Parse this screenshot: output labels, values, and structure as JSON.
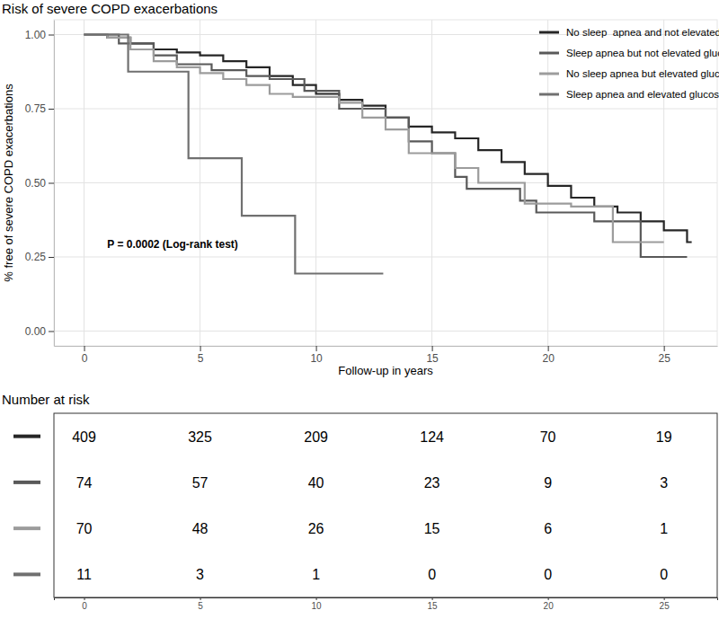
{
  "chart_data": {
    "type": "line",
    "line_style": "step",
    "title": "Risk of severe COPD exacerbations",
    "x_label": "Follow-up in years",
    "y_label": "% free of severe COPD exacerbations",
    "annotation": "P = 0.0002 (Log-rank test)",
    "xlim": [
      -1.3,
      27.3
    ],
    "ylim": [
      -0.05,
      1.05
    ],
    "xticks": [
      0,
      5,
      10,
      15,
      20,
      25
    ],
    "yticks": [
      {
        "value": 0,
        "label": "0.00"
      },
      {
        "value": 0.25,
        "label": "0.25"
      },
      {
        "value": 0.5,
        "label": "0.50"
      },
      {
        "value": 0.75,
        "label": "0.75"
      },
      {
        "value": 1,
        "label": "1.00"
      }
    ],
    "grid": true,
    "legend": "top-right",
    "series": [
      {
        "name": "No sleep  apnea and not elevated glucose",
        "color": "#262626",
        "x": [
          0,
          1,
          2,
          3,
          4,
          5,
          6,
          7,
          8,
          9,
          10,
          11,
          12,
          13,
          14,
          15,
          16,
          17,
          18,
          19,
          20,
          21,
          22,
          23,
          24,
          25,
          26,
          26.2
        ],
        "values": [
          1,
          0.99,
          0.97,
          0.95,
          0.94,
          0.93,
          0.91,
          0.89,
          0.86,
          0.83,
          0.8,
          0.78,
          0.76,
          0.72,
          0.69,
          0.67,
          0.65,
          0.61,
          0.57,
          0.53,
          0.49,
          0.45,
          0.42,
          0.4,
          0.37,
          0.34,
          0.3,
          0.3
        ]
      },
      {
        "name": "Sleep apnea but not elevated glucose",
        "color": "#595959",
        "x": [
          0,
          1.5,
          3,
          4,
          5.5,
          7,
          8,
          9.5,
          11,
          13,
          14,
          15,
          16,
          16.5,
          18.8,
          19.5,
          22,
          24,
          26
        ],
        "values": [
          1,
          0.97,
          0.93,
          0.9,
          0.88,
          0.86,
          0.85,
          0.81,
          0.75,
          0.72,
          0.64,
          0.6,
          0.52,
          0.48,
          0.44,
          0.4,
          0.37,
          0.25,
          0.25
        ]
      },
      {
        "name": "No sleep apnea but elevated glucose",
        "color": "#9c9c9c",
        "x": [
          0,
          1,
          2,
          3,
          4,
          5,
          6,
          7,
          8,
          9,
          11,
          12,
          13,
          14,
          16,
          17,
          19,
          21,
          22.8,
          25
        ],
        "values": [
          1,
          0.99,
          0.95,
          0.91,
          0.89,
          0.87,
          0.85,
          0.83,
          0.8,
          0.79,
          0.77,
          0.72,
          0.68,
          0.6,
          0.55,
          0.5,
          0.43,
          0.42,
          0.3,
          0.3
        ]
      },
      {
        "name": "Sleep apnea and elevated glucose",
        "color": "#707070",
        "x": [
          0,
          1.9,
          4.5,
          6.8,
          9.1,
          12.9
        ],
        "values": [
          1,
          0.875,
          0.583,
          0.389,
          0.194,
          0.194
        ]
      }
    ],
    "risk_table": {
      "title": "Number at risk",
      "x": [
        0,
        5,
        10,
        15,
        20,
        25
      ],
      "rows": [
        [
          409,
          325,
          209,
          124,
          70,
          19
        ],
        [
          74,
          57,
          40,
          23,
          9,
          3
        ],
        [
          70,
          48,
          26,
          15,
          6,
          1
        ],
        [
          11,
          3,
          1,
          0,
          0,
          0
        ]
      ]
    }
  }
}
